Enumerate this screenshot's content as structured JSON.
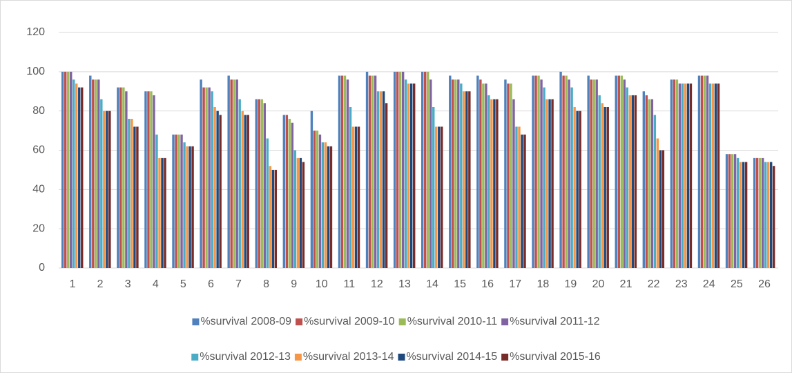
{
  "chart_data": {
    "type": "bar",
    "categories": [
      "1",
      "2",
      "3",
      "4",
      "5",
      "6",
      "7",
      "8",
      "9",
      "10",
      "11",
      "12",
      "13",
      "14",
      "15",
      "16",
      "17",
      "18",
      "19",
      "20",
      "21",
      "22",
      "23",
      "24",
      "25",
      "26"
    ],
    "series": [
      {
        "name": "%survival 2008-09",
        "color": "#4f81bd",
        "values": [
          100,
          98,
          92,
          90,
          68,
          96,
          98,
          86,
          78,
          80,
          98,
          100,
          100,
          100,
          98,
          98,
          96,
          98,
          100,
          98,
          98,
          90,
          96,
          98,
          58,
          56
        ]
      },
      {
        "name": "%survival 2009-10",
        "color": "#c0504d",
        "values": [
          100,
          96,
          92,
          90,
          68,
          92,
          96,
          86,
          78,
          70,
          98,
          98,
          100,
          100,
          96,
          96,
          94,
          98,
          98,
          96,
          98,
          88,
          96,
          98,
          58,
          56
        ]
      },
      {
        "name": "%survival 2010-11",
        "color": "#9bbb59",
        "values": [
          100,
          96,
          92,
          90,
          68,
          92,
          96,
          86,
          76,
          70,
          98,
          98,
          100,
          100,
          96,
          94,
          94,
          98,
          98,
          96,
          98,
          86,
          96,
          98,
          58,
          56
        ]
      },
      {
        "name": "%survival 2011-12",
        "color": "#8064a2",
        "values": [
          100,
          96,
          90,
          88,
          68,
          92,
          96,
          84,
          74,
          68,
          96,
          98,
          100,
          96,
          96,
          94,
          86,
          96,
          96,
          96,
          96,
          86,
          94,
          98,
          58,
          56
        ]
      },
      {
        "name": "%survival 2012-13",
        "color": "#4bacc6",
        "values": [
          96,
          86,
          76,
          68,
          64,
          90,
          86,
          66,
          60,
          64,
          82,
          90,
          96,
          82,
          94,
          88,
          72,
          92,
          92,
          88,
          92,
          78,
          94,
          94,
          56,
          54
        ]
      },
      {
        "name": "%survival 2013-14",
        "color": "#f79646",
        "values": [
          94,
          80,
          76,
          56,
          62,
          82,
          80,
          52,
          56,
          64,
          72,
          90,
          94,
          72,
          90,
          86,
          72,
          86,
          82,
          84,
          88,
          66,
          94,
          94,
          54,
          54
        ]
      },
      {
        "name": "%survival 2014-15",
        "color": "#1f497d",
        "values": [
          92,
          80,
          72,
          56,
          62,
          80,
          78,
          50,
          56,
          62,
          72,
          90,
          94,
          72,
          90,
          86,
          68,
          86,
          80,
          82,
          88,
          60,
          94,
          94,
          54,
          54
        ]
      },
      {
        "name": "%survival 2015-16",
        "color": "#772c2a",
        "values": [
          92,
          80,
          72,
          56,
          62,
          78,
          78,
          50,
          54,
          62,
          72,
          84,
          94,
          72,
          90,
          86,
          68,
          86,
          80,
          82,
          88,
          60,
          94,
          94,
          54,
          52
        ]
      }
    ],
    "ylim": [
      0,
      120
    ],
    "yticks": [
      0,
      20,
      40,
      60,
      80,
      100,
      120
    ],
    "grid": true,
    "legend": "bottom"
  }
}
